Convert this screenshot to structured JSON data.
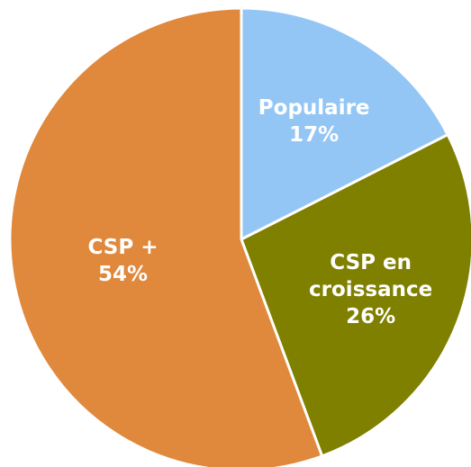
{
  "chart_data": {
    "type": "pie",
    "categories": [
      "Populaire",
      "CSP en croissance",
      "CSP +"
    ],
    "values": [
      17,
      26,
      54
    ],
    "value_labels": [
      "17%",
      "26%",
      "54%"
    ],
    "colors": [
      "#94c6f5",
      "#7f8000",
      "#e0883c"
    ]
  }
}
